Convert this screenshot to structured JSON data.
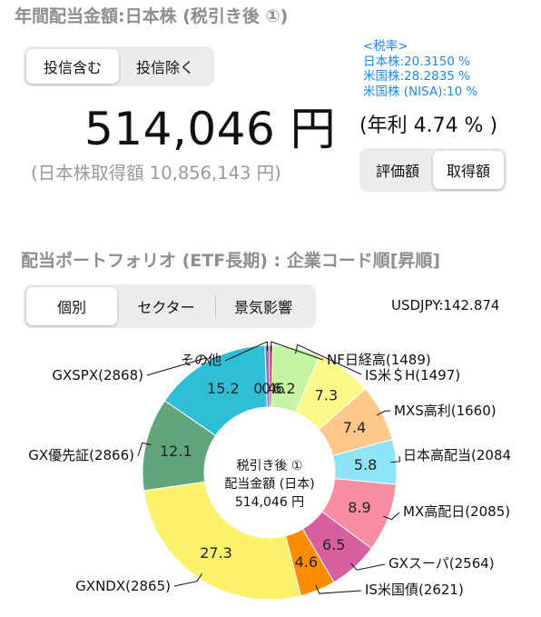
{
  "header": {
    "title": "年間配当金額:日本株 (税引き後 ①)"
  },
  "fund_toggle": {
    "include_label": "投信含む",
    "exclude_label": "投信除く",
    "selected": "include"
  },
  "tax": {
    "heading": "<税率>",
    "jp": "日本株:20.3150 %",
    "us": "米国株:28.2835 %",
    "us_nisa": "米国株 (NISA):10 %"
  },
  "summary": {
    "amount": "514,046 円",
    "yield": "(年利 4.74 % )",
    "acquisition": "(日本株取得額 10,856,143 円)"
  },
  "basis_toggle": {
    "valuation_label": "評価額",
    "cost_label": "取得額",
    "selected": "cost"
  },
  "portfolio": {
    "title": "配当ポートフォリオ (ETF長期) : 企業コード順[昇順]",
    "tabs": [
      "個別",
      "セクター",
      "景気影響"
    ],
    "selected_tab": 0,
    "fx": "USDJPY:142.874"
  },
  "chart_center": {
    "line1": "税引き後 ①",
    "line2": "配当金額 (日本)",
    "line3": "514,046 円"
  },
  "chart_data": {
    "type": "pie",
    "style": "donut",
    "units": "%",
    "series": [
      {
        "name": "NF日経高(1489)",
        "value": 0.4,
        "label": "0.4",
        "color": "#c62828"
      },
      {
        "name": "IS米＄H(1497)",
        "value": 6.2,
        "label": "6.2",
        "color": "#c5f5a0"
      },
      {
        "name": "",
        "value": 7.3,
        "label": "7.3",
        "color": "#fbf98a"
      },
      {
        "name": "MXS高利(1660)",
        "value": 7.4,
        "label": "7.4",
        "color": "#fdc889"
      },
      {
        "name": "日本高配当(2084",
        "value": 5.8,
        "label": "5.8",
        "color": "#8ee4f5"
      },
      {
        "name": "MX高配日(2085)",
        "value": 8.9,
        "label": "8.9",
        "color": "#f88ca0"
      },
      {
        "name": "GXスーパ(2564)",
        "value": 6.5,
        "label": "6.5",
        "color": "#d75fa0"
      },
      {
        "name": "IS米国債(2621)",
        "value": 4.6,
        "label": "4.6",
        "color": "#fb8c00"
      },
      {
        "name": "GXNDX(2865)",
        "value": 27.3,
        "label": "27.3",
        "color": "#fbf16a"
      },
      {
        "name": "GX優先証(2866)",
        "value": 12.1,
        "label": "12.1",
        "color": "#62a57b"
      },
      {
        "name": "GXSPX(2868)",
        "value": 15.2,
        "label": "15.2",
        "color": "#2ebfd6"
      },
      {
        "name": "その他",
        "value": 0.6,
        "label": "0.6",
        "color": "#9a6bd8"
      }
    ]
  }
}
